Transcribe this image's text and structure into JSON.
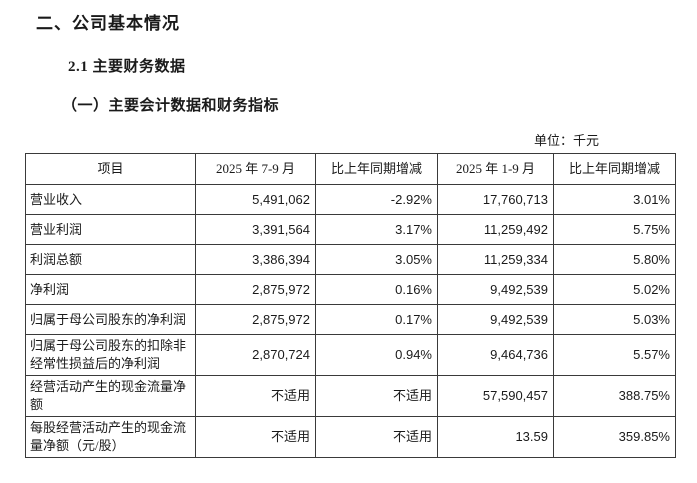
{
  "titles": {
    "section": "二、公司基本情况",
    "subsection": "2.1 主要财务数据",
    "indicator_heading": "（一）主要会计数据和财务指标"
  },
  "table": {
    "unit_label": "单位：千元",
    "headers": [
      "项目",
      "2025 年 7-9 月",
      "比上年同期增减",
      "2025 年 1-9 月",
      "比上年同期增减"
    ],
    "rows": [
      {
        "item": "营业收入",
        "values": [
          "5,491,062",
          "-2.92%",
          "17,760,713",
          "3.01%"
        ]
      },
      {
        "item": "营业利润",
        "values": [
          "3,391,564",
          "3.17%",
          "11,259,492",
          "5.75%"
        ]
      },
      {
        "item": "利润总额",
        "values": [
          "3,386,394",
          "3.05%",
          "11,259,334",
          "5.80%"
        ]
      },
      {
        "item": "净利润",
        "values": [
          "2,875,972",
          "0.16%",
          "9,492,539",
          "5.02%"
        ]
      },
      {
        "item": "归属于母公司股东的净利润",
        "values": [
          "2,875,972",
          "0.17%",
          "9,492,539",
          "5.03%"
        ]
      },
      {
        "item": "归属于母公司股东的扣除非经常性损益后的净利润",
        "values": [
          "2,870,724",
          "0.94%",
          "9,464,736",
          "5.57%"
        ]
      },
      {
        "item": "经营活动产生的现金流量净额",
        "values": [
          "不适用",
          "不适用",
          "57,590,457",
          "388.75%"
        ]
      },
      {
        "item": "每股经营活动产生的现金流量净额（元/股）",
        "values": [
          "不适用",
          "不适用",
          "13.59",
          "359.85%"
        ]
      }
    ]
  },
  "colors": {
    "text": "#1a1a1a",
    "border": "#3a3a3a",
    "background": "#ffffff"
  }
}
